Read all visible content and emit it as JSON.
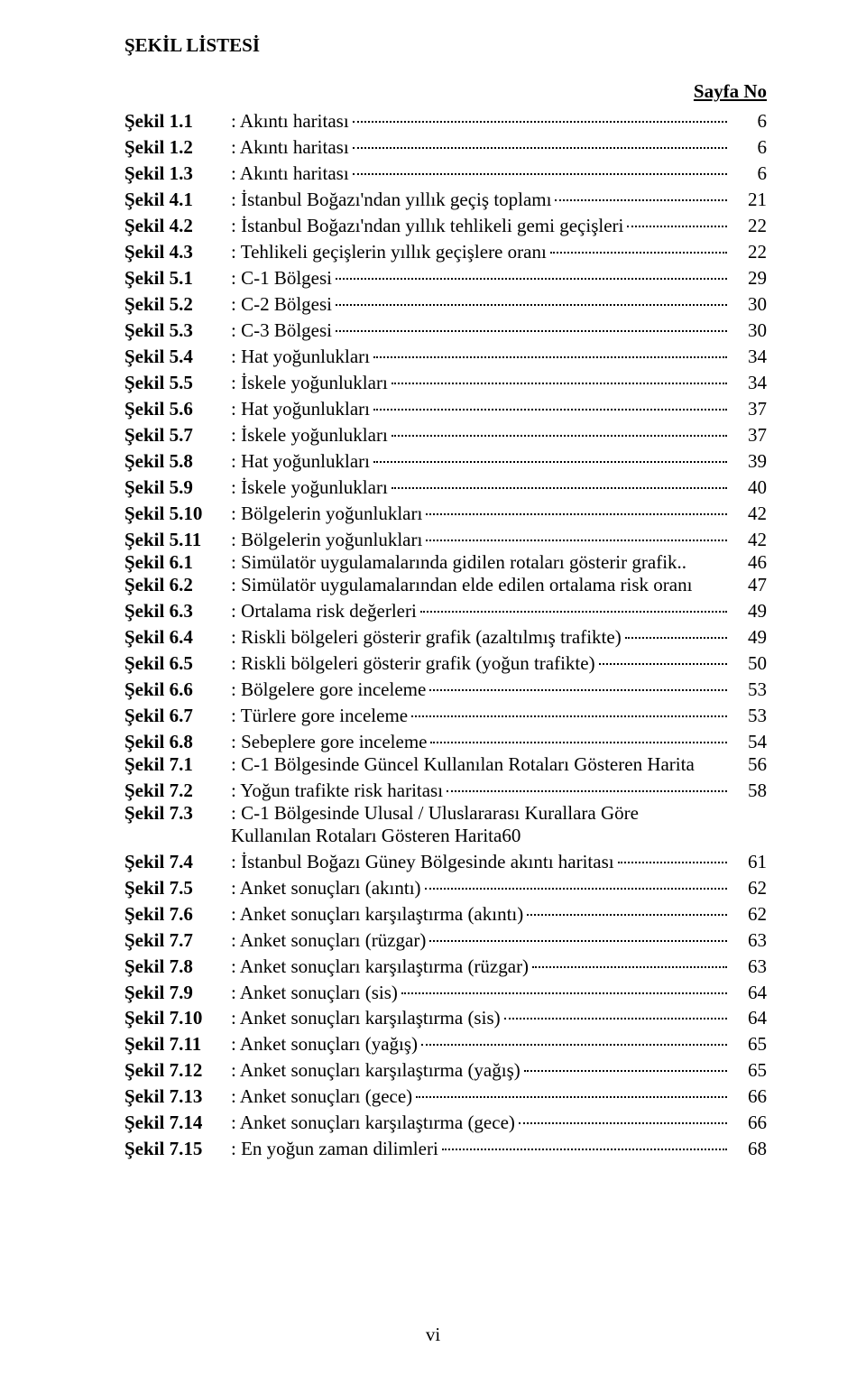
{
  "title": "ŞEKİL LİSTESİ",
  "page_header_right": "Sayfa No",
  "footer": "vi",
  "rows": [
    {
      "label": "Şekil 1.1",
      "desc": ": Akıntı haritası",
      "page": "6"
    },
    {
      "label": "Şekil 1.2",
      "desc": ": Akıntı haritası",
      "page": "6"
    },
    {
      "label": "Şekil 1.3",
      "desc": ": Akıntı haritası",
      "page": "6"
    },
    {
      "label": "Şekil 4.1",
      "desc": ": İstanbul Boğazı'ndan yıllık geçiş toplamı",
      "page": "21"
    },
    {
      "label": "Şekil 4.2",
      "desc": ": İstanbul Boğazı'ndan yıllık tehlikeli gemi geçişleri",
      "page": "22"
    },
    {
      "label": "Şekil 4.3",
      "desc": ": Tehlikeli geçişlerin yıllık geçişlere oranı",
      "page": "22"
    },
    {
      "label": "Şekil 5.1",
      "desc": ": C-1 Bölgesi",
      "page": "29"
    },
    {
      "label": "Şekil 5.2",
      "desc": ": C-2 Bölgesi",
      "page": "30"
    },
    {
      "label": "Şekil 5.3",
      "desc": ": C-3 Bölgesi",
      "page": "30"
    },
    {
      "label": "Şekil 5.4",
      "desc": ": Hat yoğunlukları",
      "page": "34"
    },
    {
      "label": "Şekil 5.5",
      "desc": ": İskele yoğunlukları",
      "page": "34"
    },
    {
      "label": "Şekil 5.6",
      "desc": ": Hat yoğunlukları",
      "page": "37"
    },
    {
      "label": "Şekil 5.7",
      "desc": ": İskele yoğunlukları",
      "page": "37"
    },
    {
      "label": "Şekil 5.8",
      "desc": ": Hat yoğunlukları",
      "page": "39"
    },
    {
      "label": "Şekil 5.9",
      "desc": ": İskele yoğunlukları",
      "page": "40"
    },
    {
      "label": "Şekil 5.10",
      "desc": ": Bölgelerin yoğunlukları",
      "page": "42"
    },
    {
      "label": "Şekil 5.11",
      "desc": ": Bölgelerin yoğunlukları",
      "page": "42"
    },
    {
      "label": "Şekil 6.1",
      "desc": ": Simülatör uygulamalarında gidilen rotaları gösterir grafik..",
      "page": "46",
      "nodots": true
    },
    {
      "label": "Şekil 6.2",
      "desc": ": Simülatör uygulamalarından elde edilen ortalama risk oranı",
      "page": "47",
      "nodots": true
    },
    {
      "label": "Şekil 6.3",
      "desc": ": Ortalama risk değerleri",
      "page": "49"
    },
    {
      "label": "Şekil 6.4",
      "desc": ": Riskli bölgeleri gösterir grafik (azaltılmış trafikte)",
      "page": "49"
    },
    {
      "label": "Şekil 6.5",
      "desc": ": Riskli bölgeleri gösterir grafik (yoğun trafikte)",
      "page": "50"
    },
    {
      "label": "Şekil 6.6",
      "desc": ": Bölgelere gore inceleme",
      "page": "53"
    },
    {
      "label": "Şekil 6.7",
      "desc": ": Türlere gore inceleme",
      "page": "53"
    },
    {
      "label": "Şekil 6.8",
      "desc": ": Sebeplere gore inceleme",
      "page": "54"
    },
    {
      "label": "Şekil 7.1",
      "desc": ": C-1 Bölgesinde Güncel Kullanılan Rotaları Gösteren Harita",
      "page": "56",
      "nodots": true
    },
    {
      "label": "Şekil 7.2",
      "desc": ": Yoğun trafikte risk haritası",
      "page": "58"
    },
    {
      "label": "Şekil 7.3",
      "desc_l1": ": C-1 Bölgesinde Ulusal / Uluslararası Kurallara Göre",
      "desc_l2": "Kullanılan Rotaları Gösteren Harita",
      "page": "60",
      "wrap": true
    },
    {
      "label": "Şekil 7.4",
      "desc": ": İstanbul Boğazı Güney Bölgesinde akıntı haritası",
      "page": "61"
    },
    {
      "label": "Şekil 7.5",
      "desc": ": Anket sonuçları (akıntı)",
      "page": "62"
    },
    {
      "label": "Şekil 7.6",
      "desc": ": Anket sonuçları karşılaştırma (akıntı)",
      "page": "62"
    },
    {
      "label": "Şekil 7.7",
      "desc": ": Anket sonuçları (rüzgar)",
      "page": "63"
    },
    {
      "label": "Şekil 7.8",
      "desc": ": Anket sonuçları karşılaştırma (rüzgar)",
      "page": "63"
    },
    {
      "label": "Şekil 7.9",
      "desc": ": Anket sonuçları (sis)",
      "page": "64"
    },
    {
      "label": "Şekil 7.10",
      "desc": ": Anket sonuçları karşılaştırma (sis)",
      "page": "64"
    },
    {
      "label": "Şekil 7.11",
      "desc": ": Anket sonuçları (yağış)",
      "page": "65"
    },
    {
      "label": "Şekil 7.12",
      "desc": ": Anket sonuçları karşılaştırma (yağış)",
      "page": "65"
    },
    {
      "label": "Şekil 7.13",
      "desc": ": Anket sonuçları (gece)",
      "page": "66"
    },
    {
      "label": "Şekil 7.14",
      "desc": ": Anket sonuçları karşılaştırma (gece)",
      "page": "66"
    },
    {
      "label": "Şekil 7.15",
      "desc": ": En yoğun zaman dilimleri",
      "page": "68"
    }
  ]
}
